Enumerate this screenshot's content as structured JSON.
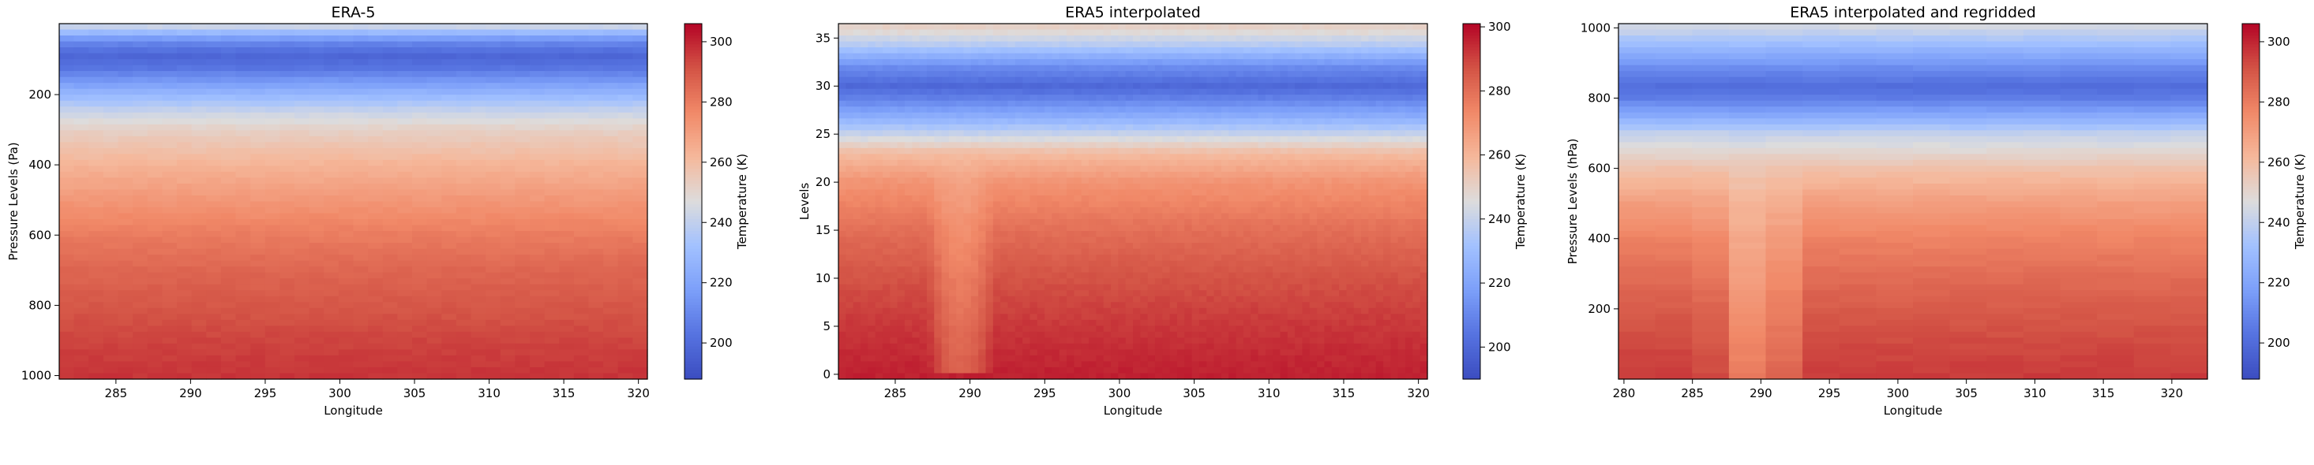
{
  "chart_data": [
    {
      "type": "heatmap",
      "title": "ERA-5",
      "xlabel": "Longitude",
      "ylabel": "Pressure Levels (Pa)",
      "colorbar_label": "Temperature (K)",
      "colormap": "coolwarm",
      "xlim": [
        281.2,
        320.6
      ],
      "ylim": [
        1010,
        -2
      ],
      "y_inverted": true,
      "xticks": [
        285,
        290,
        295,
        300,
        305,
        310,
        315,
        320
      ],
      "yticks": [
        200,
        400,
        600,
        800,
        1000
      ],
      "clim": [
        188,
        306
      ],
      "cbar_ticks": [
        200,
        220,
        240,
        260,
        280,
        300
      ],
      "columns": 40,
      "temperature_profile": [
        {
          "y": 0,
          "t": 246
        },
        {
          "y": 15,
          "t": 236
        },
        {
          "y": 35,
          "t": 220
        },
        {
          "y": 60,
          "t": 206
        },
        {
          "y": 90,
          "t": 198
        },
        {
          "y": 120,
          "t": 202
        },
        {
          "y": 160,
          "t": 215
        },
        {
          "y": 200,
          "t": 228
        },
        {
          "y": 250,
          "t": 242
        },
        {
          "y": 300,
          "t": 252
        },
        {
          "y": 400,
          "t": 263
        },
        {
          "y": 500,
          "t": 272
        },
        {
          "y": 600,
          "t": 280
        },
        {
          "y": 700,
          "t": 286
        },
        {
          "y": 800,
          "t": 290
        },
        {
          "y": 900,
          "t": 294
        },
        {
          "y": 1000,
          "t": 297
        }
      ],
      "cold_anomalies": []
    },
    {
      "type": "heatmap",
      "title": "ERA5 interpolated",
      "xlabel": "Longitude",
      "ylabel": "Levels",
      "colorbar_label": "Temperature (K)",
      "colormap": "coolwarm",
      "xlim": [
        281.2,
        320.6
      ],
      "ylim": [
        -0.5,
        36.5
      ],
      "y_inverted": false,
      "xticks": [
        285,
        290,
        295,
        300,
        305,
        310,
        315,
        320
      ],
      "yticks": [
        0,
        5,
        10,
        15,
        20,
        25,
        30,
        35
      ],
      "clim": [
        190,
        301
      ],
      "cbar_ticks": [
        200,
        220,
        240,
        260,
        280,
        300
      ],
      "columns": 80,
      "temperature_profile": [
        {
          "y": 0,
          "t": 296
        },
        {
          "y": 5,
          "t": 292
        },
        {
          "y": 10,
          "t": 287
        },
        {
          "y": 15,
          "t": 280
        },
        {
          "y": 20,
          "t": 270
        },
        {
          "y": 23,
          "t": 258
        },
        {
          "y": 25,
          "t": 240
        },
        {
          "y": 27,
          "t": 222
        },
        {
          "y": 29,
          "t": 206
        },
        {
          "y": 30,
          "t": 200
        },
        {
          "y": 32,
          "t": 212
        },
        {
          "y": 34,
          "t": 234
        },
        {
          "y": 36,
          "t": 250
        }
      ],
      "cold_anomalies": [
        {
          "x": 289.4,
          "half_width": 2.2,
          "top": 23,
          "bottom": 0,
          "delta": -12
        }
      ]
    },
    {
      "type": "heatmap",
      "title": "ERA5 interpolated and regridded",
      "xlabel": "Longitude",
      "ylabel": "Pressure Levels (hPa)",
      "colorbar_label": "Temperature (K)",
      "colormap": "coolwarm",
      "xlim": [
        279.6,
        322.6
      ],
      "ylim": [
        0,
        1012
      ],
      "y_inverted": false,
      "xticks": [
        280,
        285,
        290,
        295,
        300,
        305,
        310,
        315,
        320
      ],
      "yticks": [
        200,
        400,
        600,
        800,
        1000
      ],
      "clim": [
        188,
        306
      ],
      "cbar_ticks": [
        200,
        220,
        240,
        260,
        280,
        300
      ],
      "columns": 16,
      "temperature_profile": [
        {
          "y": 0,
          "t": 296
        },
        {
          "y": 100,
          "t": 293
        },
        {
          "y": 200,
          "t": 289
        },
        {
          "y": 300,
          "t": 284
        },
        {
          "y": 400,
          "t": 278
        },
        {
          "y": 500,
          "t": 270
        },
        {
          "y": 600,
          "t": 258
        },
        {
          "y": 700,
          "t": 240
        },
        {
          "y": 750,
          "t": 222
        },
        {
          "y": 800,
          "t": 206
        },
        {
          "y": 830,
          "t": 200
        },
        {
          "y": 880,
          "t": 210
        },
        {
          "y": 950,
          "t": 230
        },
        {
          "y": 1010,
          "t": 246
        }
      ],
      "cold_anomalies": [
        {
          "x": 289.5,
          "half_width": 3.5,
          "top": 620,
          "bottom": 0,
          "delta": -16
        }
      ]
    }
  ]
}
